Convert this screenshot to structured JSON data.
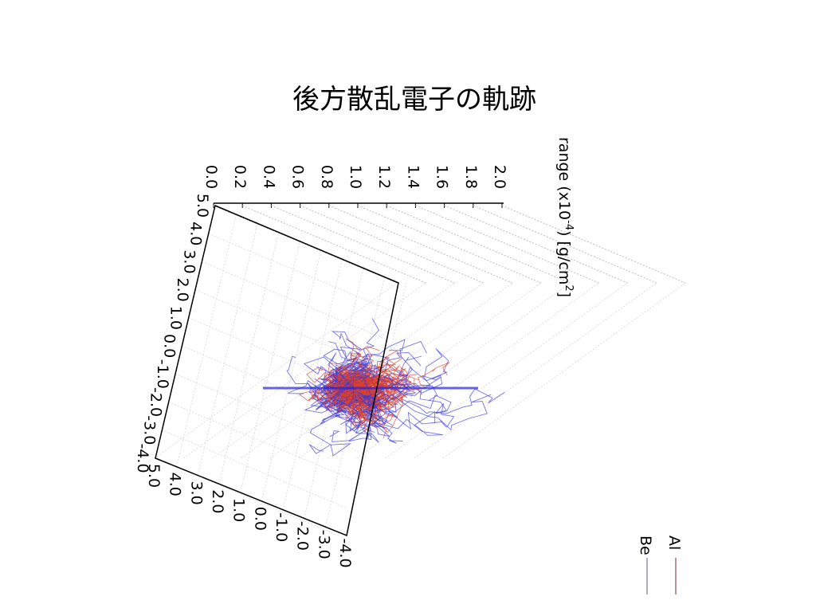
{
  "title": "後方散乱電子の軌跡",
  "axes": {
    "range_label": "range (x10",
    "range_label_exp": "-4",
    "range_label_rest": ") [g/cm",
    "range_label_exp2": "2",
    "range_label_end": "]",
    "range_ticks": [
      "0.0",
      "0.2",
      "0.4",
      "0.6",
      "0.8",
      "1.0",
      "1.2",
      "1.4",
      "1.6",
      "1.8",
      "2.0"
    ],
    "left_ticks": [
      "5.0",
      "4.0",
      "3.0",
      "2.0",
      "1.0",
      "0.0",
      "-1.0",
      "-2.0",
      "-3.0",
      "-4.0"
    ],
    "bottom_ticks": [
      "5.0",
      "4.0",
      "3.0",
      "2.0",
      "1.0",
      "0.0",
      "-1.0",
      "-2.0",
      "-3.0",
      "-4.0"
    ]
  },
  "legend": [
    {
      "name": "Al",
      "color": "#a07070"
    },
    {
      "name": "Be",
      "color": "#9090b0"
    }
  ]
}
